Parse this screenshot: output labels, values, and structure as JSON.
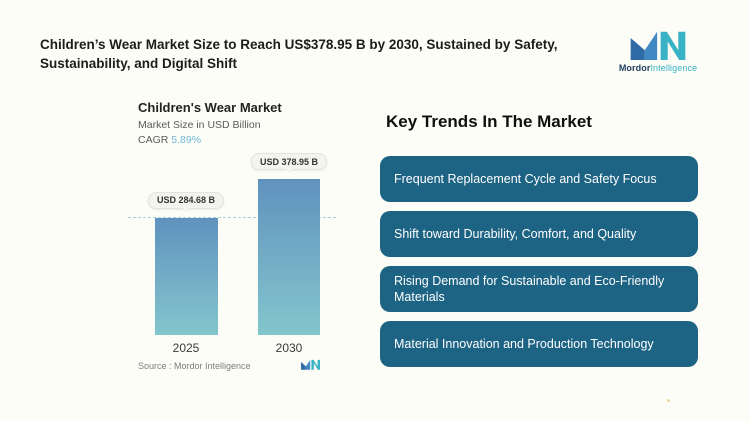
{
  "header": {
    "title": "Children’s Wear Market Size to Reach US$378.95 B by 2030, Sustained by Safety, Sustainability, and Digital Shift",
    "brand": {
      "name_bold": "Mordor",
      "name_light": "Intelligence"
    }
  },
  "chart_data": {
    "type": "bar",
    "title": "Children's Wear Market",
    "subtitle": "Market Size in USD Billion",
    "cagr_label": "CAGR",
    "cagr_value": "5.89%",
    "categories": [
      "2025",
      "2030"
    ],
    "values": [
      284.68,
      378.95
    ],
    "value_labels": [
      "USD 284.68 B",
      "USD 378.95 B"
    ],
    "unit": "USD Billion",
    "ylim": [
      0,
      378.95
    ],
    "grid": "horizontal dashed reference line at first bar value",
    "legend": "none",
    "source": "Source :  Mordor Intelligence"
  },
  "trends": {
    "heading": "Key Trends In The Market",
    "items": [
      "Frequent Replacement Cycle and Safety Focus",
      "Shift toward Durability, Comfort, and Quality",
      "Rising Demand for Sustainable and Eco-Friendly Materials",
      "Material Innovation and Production Technology"
    ]
  },
  "colors": {
    "trend_box": "#1d6384",
    "bar_gradient_top": "#6092be",
    "bar_gradient_bottom": "#83c6cd",
    "cagr_value": "#6fb6d8",
    "dashed_line": "#a9d0e2",
    "brand_blue_dark": "#2f6ba6",
    "brand_blue": "#4189c4",
    "brand_teal": "#38b2c4",
    "brand_text_dark": "#1e3c5c"
  }
}
